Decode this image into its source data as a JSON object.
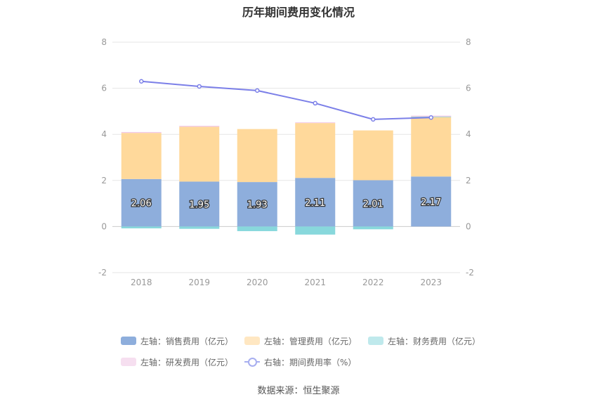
{
  "chart_data": {
    "type": "bar",
    "title": "历年期间费用变化情况",
    "categories": [
      "2018",
      "2019",
      "2020",
      "2021",
      "2022",
      "2023"
    ],
    "stacked": true,
    "y_left": {
      "min": -2,
      "max": 8,
      "ticks": [
        "8",
        "6",
        "4",
        "2",
        "0",
        "-2"
      ]
    },
    "y_right": {
      "min": -2,
      "max": 8,
      "ticks": [
        "8",
        "6",
        "4",
        "2",
        "0",
        "-2"
      ]
    },
    "grid": true,
    "legend_position": "bottom",
    "series": [
      {
        "name": "左轴：销售费用（亿元）",
        "axis": "left",
        "kind": "bar",
        "color": "#8eaedc",
        "values": [
          2.06,
          1.95,
          1.93,
          2.11,
          2.01,
          2.17
        ],
        "labels": [
          "2.06",
          "1.95",
          "1.93",
          "2.11",
          "2.01",
          "2.17"
        ]
      },
      {
        "name": "左轴：管理费用（亿元）",
        "axis": "left",
        "kind": "bar",
        "color": "#ffd99b",
        "values": [
          2.0,
          2.38,
          2.3,
          2.38,
          2.16,
          2.58
        ]
      },
      {
        "name": "左轴：财务费用（亿元）",
        "axis": "left",
        "kind": "bar",
        "color": "#88d8dc",
        "values": [
          -0.08,
          -0.1,
          -0.2,
          -0.35,
          -0.12,
          0.02
        ]
      },
      {
        "name": "左轴：研发费用（亿元）",
        "axis": "left",
        "kind": "bar",
        "color": "#f2c9e6",
        "values": [
          0.04,
          0.04,
          0.0,
          0.03,
          0.0,
          0.04
        ]
      },
      {
        "name": "右轴：期间费用率（%）",
        "axis": "right",
        "kind": "line",
        "color": "#7b7fe8",
        "values": [
          6.3,
          6.08,
          5.9,
          5.35,
          4.65,
          4.73
        ]
      }
    ],
    "source": "数据来源：恒生聚源"
  }
}
